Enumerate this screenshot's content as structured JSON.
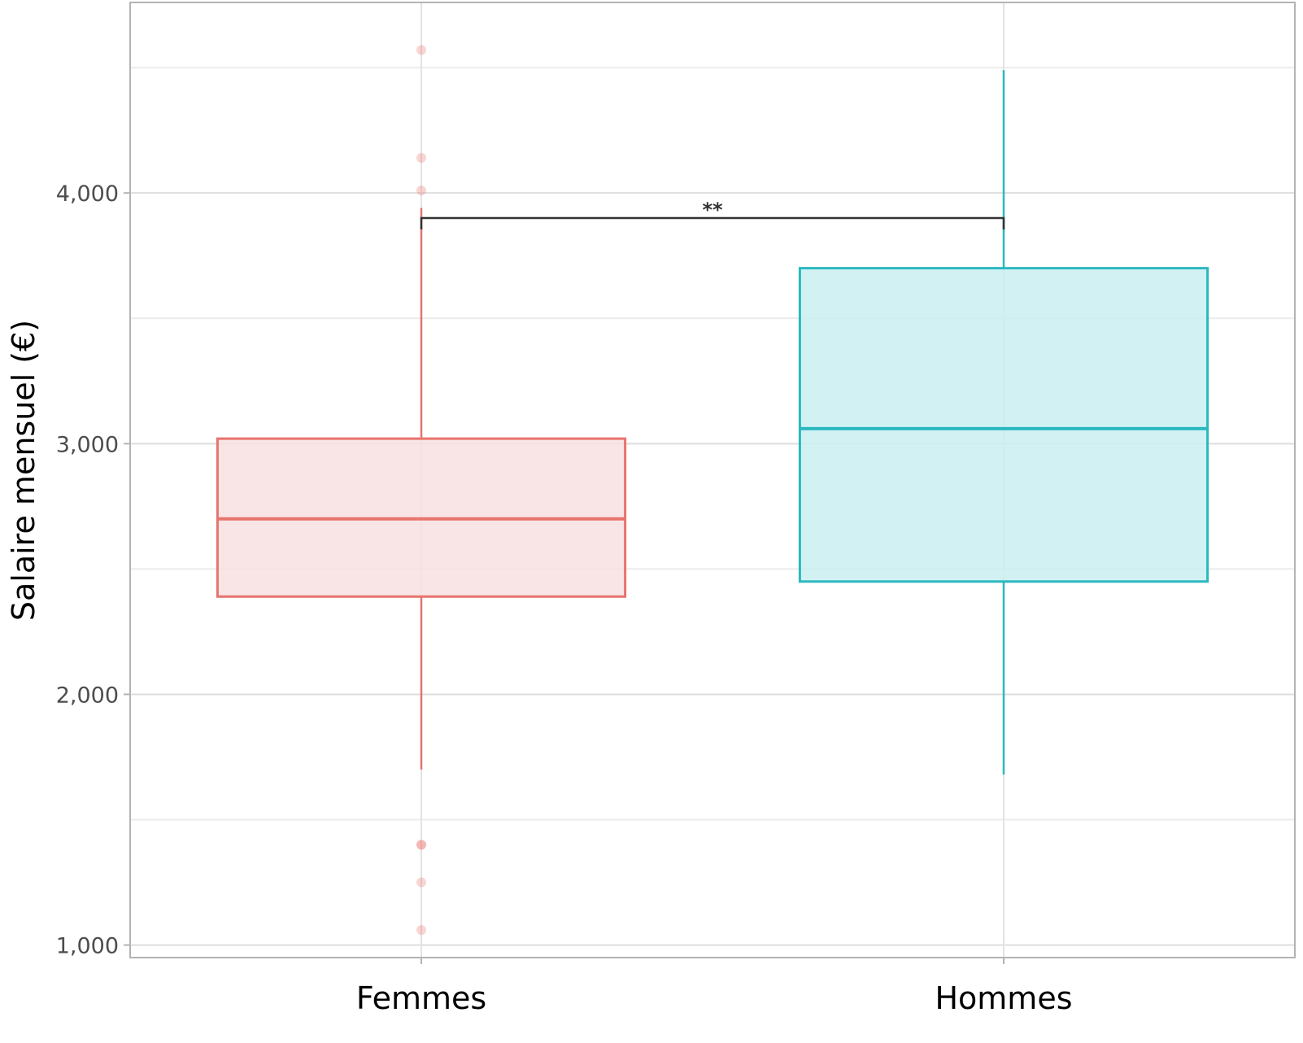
{
  "chart_data": {
    "type": "boxplot",
    "ylabel": "Salaire mensuel (€)",
    "xlabel": "",
    "ylim": [
      950,
      4760
    ],
    "yticks": [
      1000,
      2000,
      3000,
      4000
    ],
    "ytick_labels": [
      "1,000",
      "2,000",
      "3,000",
      "4,000"
    ],
    "minor_gridlines": [
      1500,
      2500,
      3500,
      4500
    ],
    "grid": true,
    "categories": [
      "Femmes",
      "Hommes"
    ],
    "boxes": [
      {
        "category": "Femmes",
        "color": "#e8736d",
        "fill": "#f8e1e0",
        "q1": 2390,
        "median": 2700,
        "q3": 3020,
        "whisker_low": 1700,
        "whisker_high": 3940,
        "outliers": [
          4570,
          4140,
          4010,
          1400,
          1400,
          1250,
          1060
        ]
      },
      {
        "category": "Hommes",
        "color": "#2bb8bf",
        "fill": "#c9eff1",
        "q1": 2450,
        "median": 3060,
        "q3": 3700,
        "whisker_low": 1680,
        "whisker_high": 4490,
        "outliers": []
      }
    ],
    "significance": {
      "label": "**",
      "from": "Femmes",
      "to": "Hommes",
      "y": 3900
    }
  }
}
